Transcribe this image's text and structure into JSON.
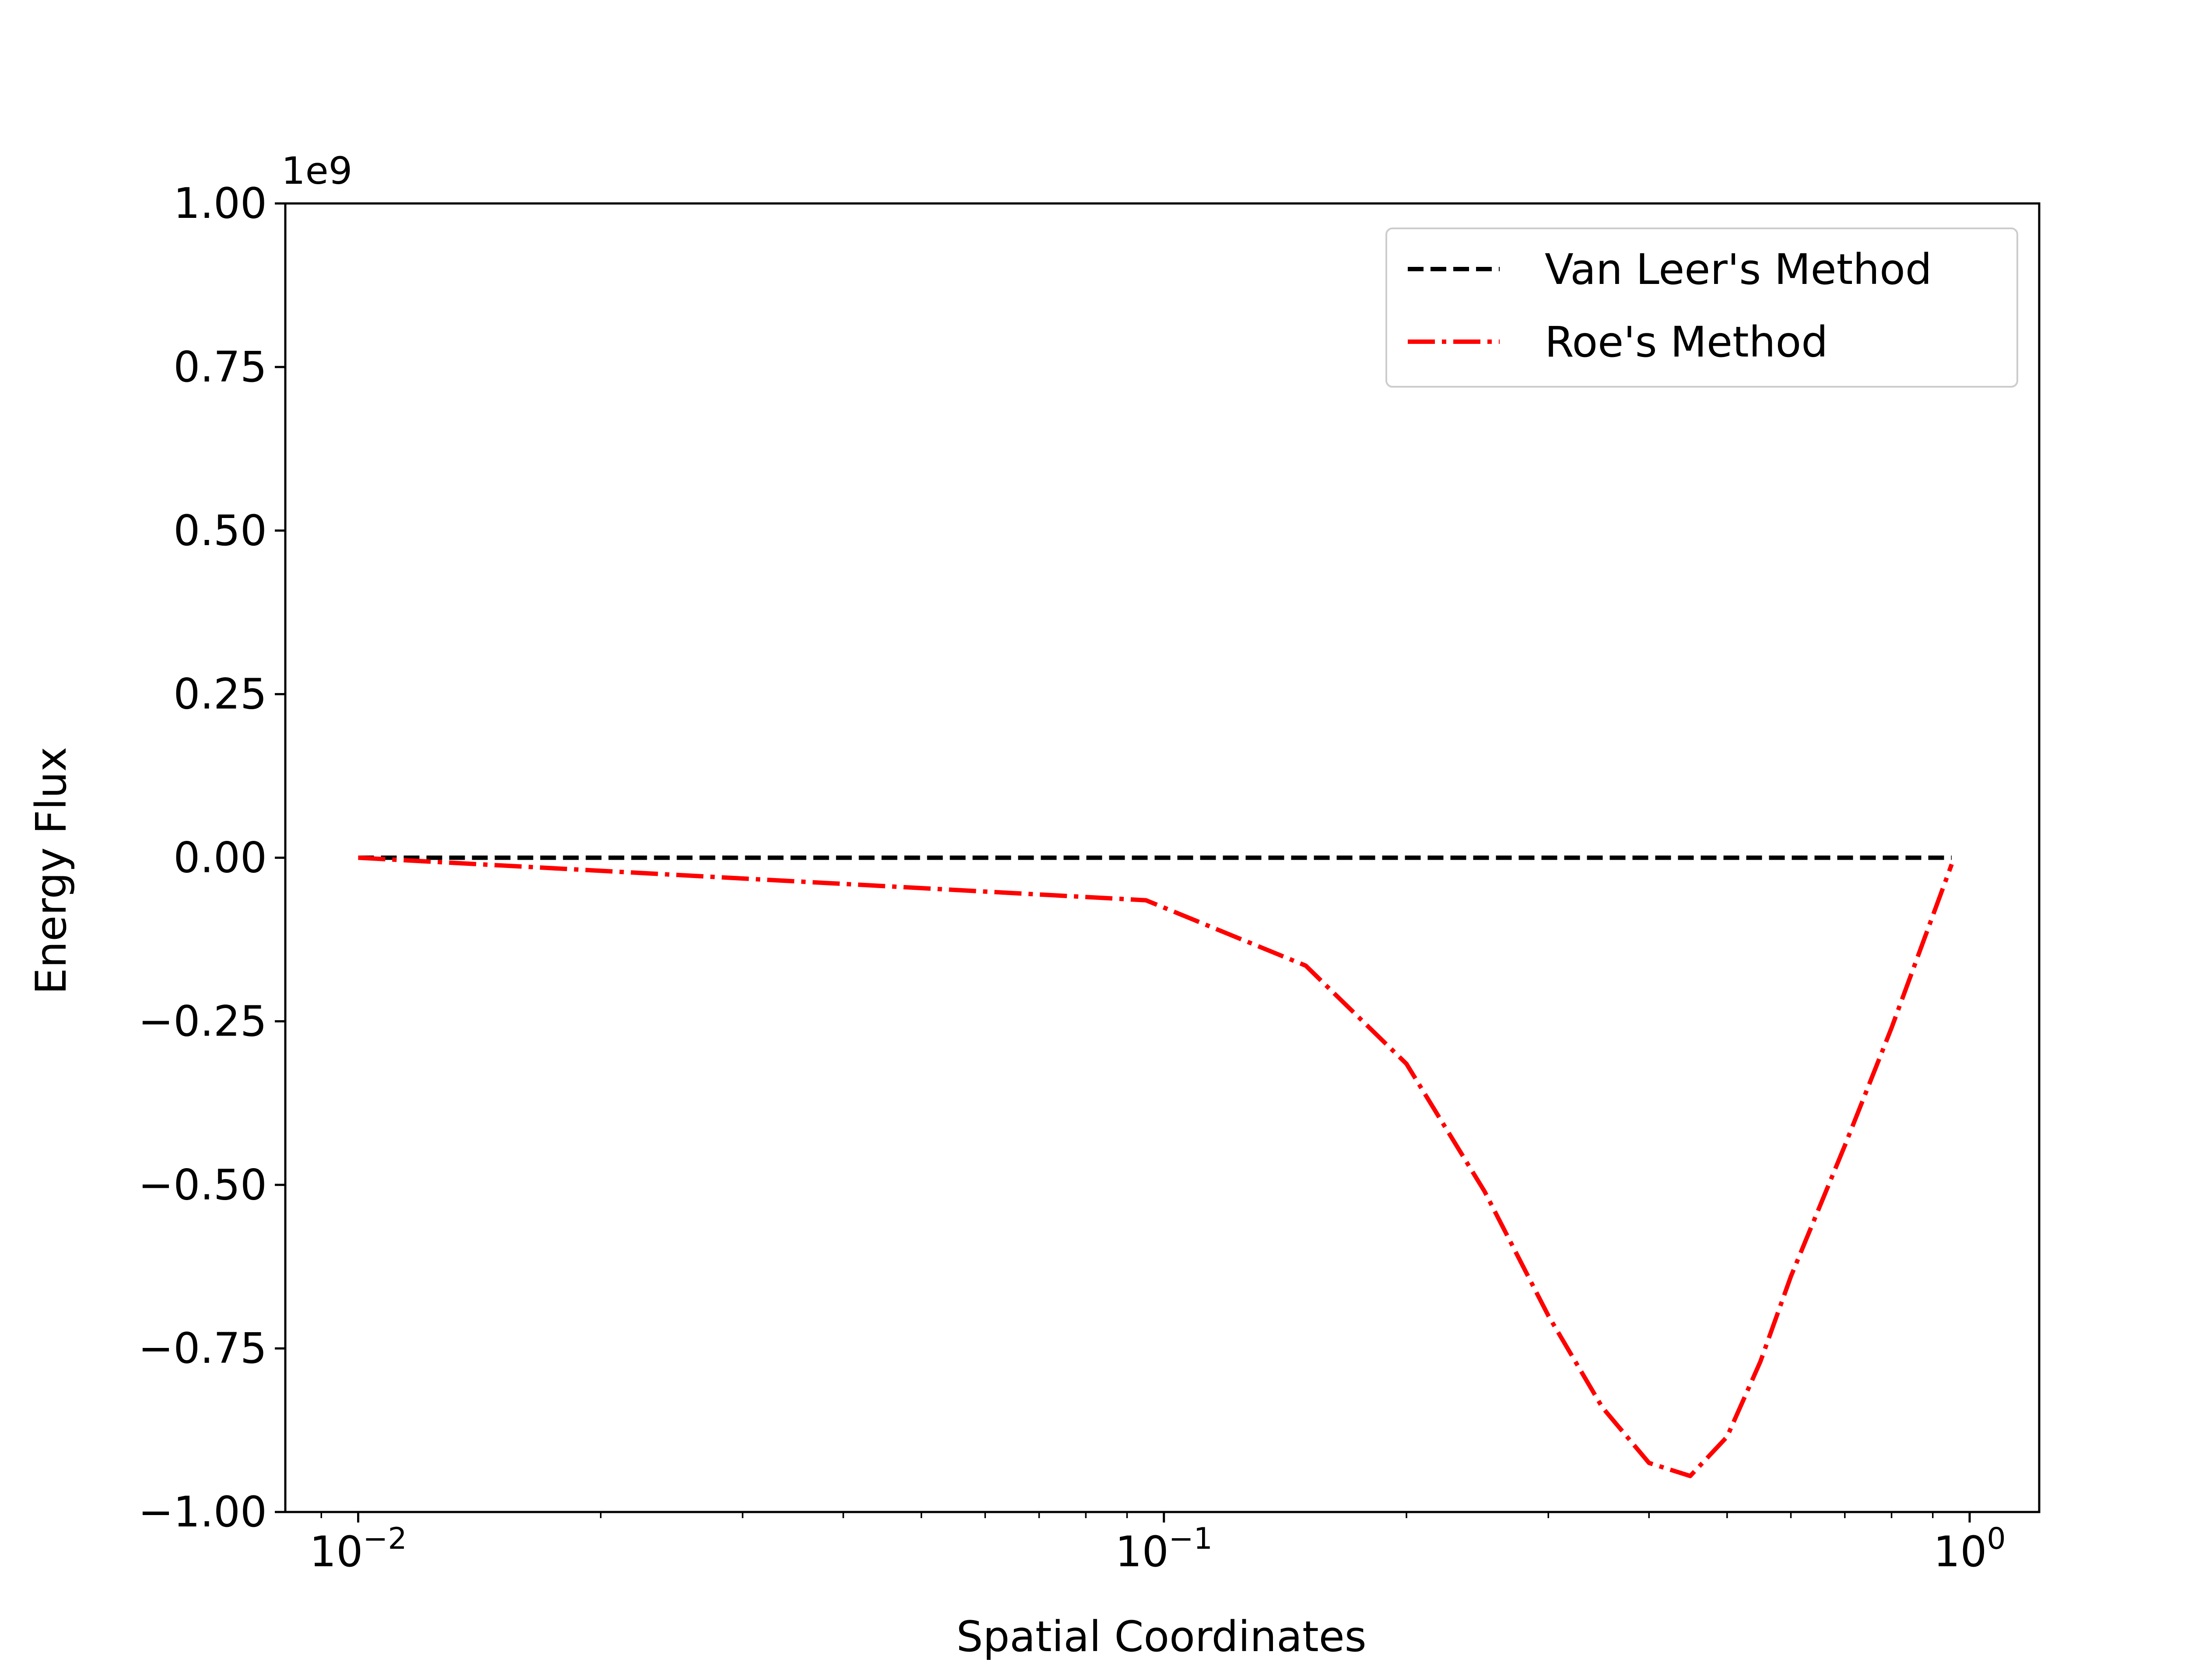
{
  "chart_data": {
    "type": "line",
    "title": "",
    "xlabel": "Spatial Coordinates",
    "ylabel": "Energy Flux",
    "x_scale": "log",
    "xlim": [
      0.00812,
      1.22
    ],
    "ylim": [
      -1000000000.0,
      1000000000.0
    ],
    "y_offset_text": "1e9",
    "x_ticks": [
      {
        "value": 0.01,
        "base": "10",
        "exp": "−2"
      },
      {
        "value": 0.1,
        "base": "10",
        "exp": "−1"
      },
      {
        "value": 1,
        "base": "10",
        "exp": "0"
      }
    ],
    "y_ticks": [
      {
        "value": 1000000000.0,
        "label": "1.00"
      },
      {
        "value": 750000000.0,
        "label": "0.75"
      },
      {
        "value": 500000000.0,
        "label": "0.50"
      },
      {
        "value": 250000000.0,
        "label": "0.25"
      },
      {
        "value": 0,
        "label": "0.00"
      },
      {
        "value": -250000000.0,
        "label": "−0.25"
      },
      {
        "value": -500000000.0,
        "label": "−0.50"
      },
      {
        "value": -750000000.0,
        "label": "−0.75"
      },
      {
        "value": -1000000000.0,
        "label": "−1.00"
      }
    ],
    "grid": false,
    "legend_position": "top-right",
    "series": [
      {
        "name": "Van Leer's Method",
        "color": "#000000",
        "style": "dashed",
        "x": [
          0.01,
          0.95
        ],
        "y": [
          0,
          0
        ]
      },
      {
        "name": "Roe's Method",
        "color": "#ff0000",
        "style": "dashdot",
        "x": [
          0.01,
          0.095,
          0.15,
          0.2,
          0.25,
          0.3,
          0.35,
          0.4,
          0.45,
          0.5,
          0.55,
          0.6,
          0.7,
          0.8,
          0.95
        ],
        "y": [
          0,
          -65000000.0,
          -165000000.0,
          -315000000.0,
          -510000000.0,
          -700000000.0,
          -840000000.0,
          -925000000.0,
          -945000000.0,
          -885000000.0,
          -770000000.0,
          -640000000.0,
          -440000000.0,
          -260000000.0,
          -10000000.0
        ]
      }
    ]
  }
}
